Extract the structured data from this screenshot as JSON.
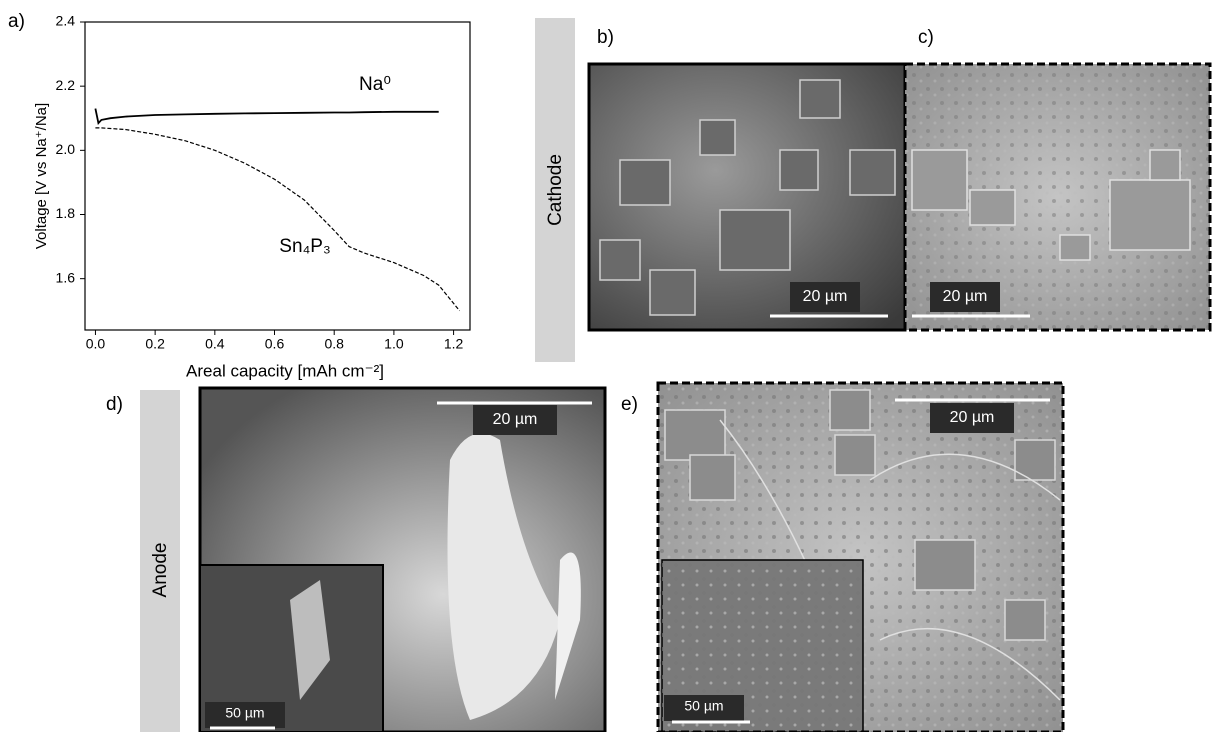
{
  "chart_data": {
    "type": "line",
    "panel_label": "a)",
    "xlabel": "Areal capacity [mAh cm⁻²]",
    "ylabel": "Voltage [V vs Na⁺/Na]",
    "x": [
      0,
      0.01,
      0.02,
      0.05,
      0.1,
      0.2,
      0.3,
      0.4,
      0.5,
      0.6,
      0.7,
      0.8,
      0.85,
      0.9,
      1.0,
      1.1,
      1.15,
      1.22
    ],
    "series": [
      {
        "name": "Na⁰",
        "color": "#000000",
        "dashed": false,
        "values": [
          2.13,
          2.085,
          2.095,
          2.1,
          2.105,
          2.11,
          2.112,
          2.114,
          2.115,
          2.116,
          2.117,
          2.118,
          2.118,
          2.119,
          2.12,
          2.12,
          2.12,
          null
        ]
      },
      {
        "name": "Sn₄P₃",
        "color": "#000000",
        "dashed": true,
        "values": [
          2.07,
          2.07,
          2.07,
          2.068,
          2.065,
          2.05,
          2.03,
          2.0,
          1.96,
          1.91,
          1.845,
          1.75,
          1.7,
          1.68,
          1.65,
          1.61,
          1.58,
          1.5
        ]
      }
    ],
    "xlim": [
      -0.035,
      1.255
    ],
    "ylim": [
      1.44,
      2.4
    ],
    "xticks": [
      {
        "value": 0,
        "label": "0.0"
      },
      0.2,
      0.4,
      0.6,
      0.8,
      {
        "value": 1,
        "label": "1.0"
      },
      1.2
    ],
    "yticks": [
      1.6,
      1.8,
      {
        "value": 2,
        "label": "2.0"
      },
      2.2,
      2.4
    ]
  },
  "rows": [
    "Cathode",
    "Anode"
  ],
  "micrographs": [
    {
      "label": "b)",
      "scale_bar": "20 µm"
    },
    {
      "label": "c)",
      "scale_bar": "20 µm"
    },
    {
      "label": "d)",
      "scale_bar": "20 µm",
      "inset_scale_bar": "50 µm"
    },
    {
      "label": "e)",
      "scale_bar": "20 µm",
      "inset_scale_bar": "50 µm"
    }
  ]
}
